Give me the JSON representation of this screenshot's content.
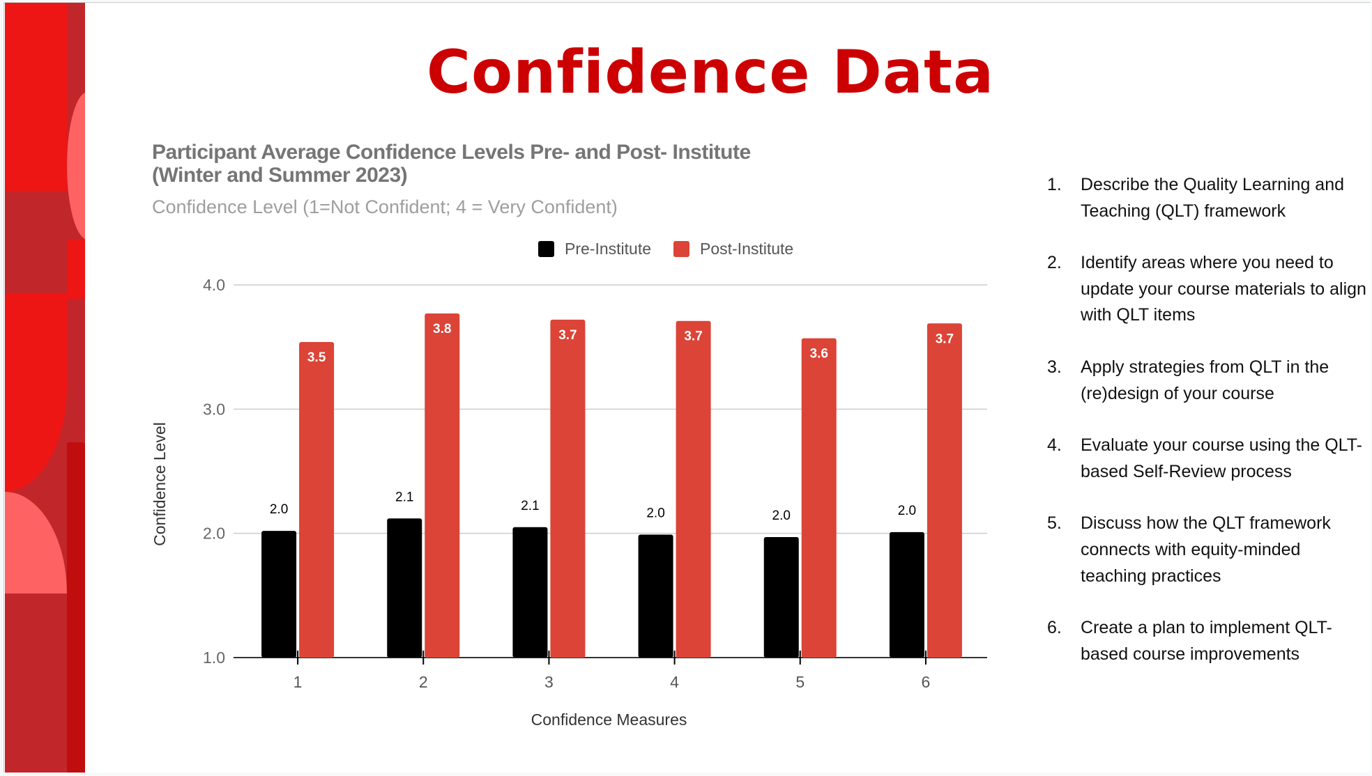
{
  "slide": {
    "title": "Confidence Data",
    "title_color": "#cc0000"
  },
  "chart_data": {
    "type": "bar",
    "title": "Participant Average Confidence Levels Pre- and Post- Institute (Winter and Summer 2023)",
    "title_lines": [
      "Participant Average Confidence Levels Pre- and Post- Institute",
      "(Winter and Summer 2023)"
    ],
    "subtitle": "Confidence Level (1=Not Confident; 4 = Very Confident)",
    "xlabel": "Confidence Measures",
    "ylabel": "Confidence Level",
    "categories": [
      "1",
      "2",
      "3",
      "4",
      "5",
      "6"
    ],
    "ylim": [
      1.0,
      4.0
    ],
    "yticks": [
      "1.0",
      "2.0",
      "3.0",
      "4.0"
    ],
    "grid": true,
    "legend_position": "top",
    "series": [
      {
        "name": "Pre-Institute",
        "color": "#000000",
        "values": [
          2.02,
          2.12,
          2.05,
          1.99,
          1.97,
          2.01
        ],
        "data_labels": [
          "2.0",
          "2.1",
          "2.1",
          "2.0",
          "2.0",
          "2.0"
        ]
      },
      {
        "name": "Post-Institute",
        "color": "#db4437",
        "values": [
          3.54,
          3.77,
          3.72,
          3.71,
          3.57,
          3.69
        ],
        "data_labels": [
          "3.5",
          "3.8",
          "3.7",
          "3.7",
          "3.6",
          "3.7"
        ]
      }
    ]
  },
  "objectives": [
    {
      "num": "1.",
      "text": "Describe the Quality Learning and Teaching (QLT) framework"
    },
    {
      "num": "2.",
      "text": "Identify areas where you need to update your course materials to align with QLT items"
    },
    {
      "num": "3.",
      "text": "Apply strategies from QLT in the (re)design of your course"
    },
    {
      "num": "4.",
      "text": "Evaluate your course using the QLT-based Self-Review process"
    },
    {
      "num": "5.",
      "text": "Discuss how the QLT framework connects with equity-minded teaching practices"
    },
    {
      "num": "6.",
      "text": "Create a plan to implement QLT-based course improvements"
    }
  ]
}
